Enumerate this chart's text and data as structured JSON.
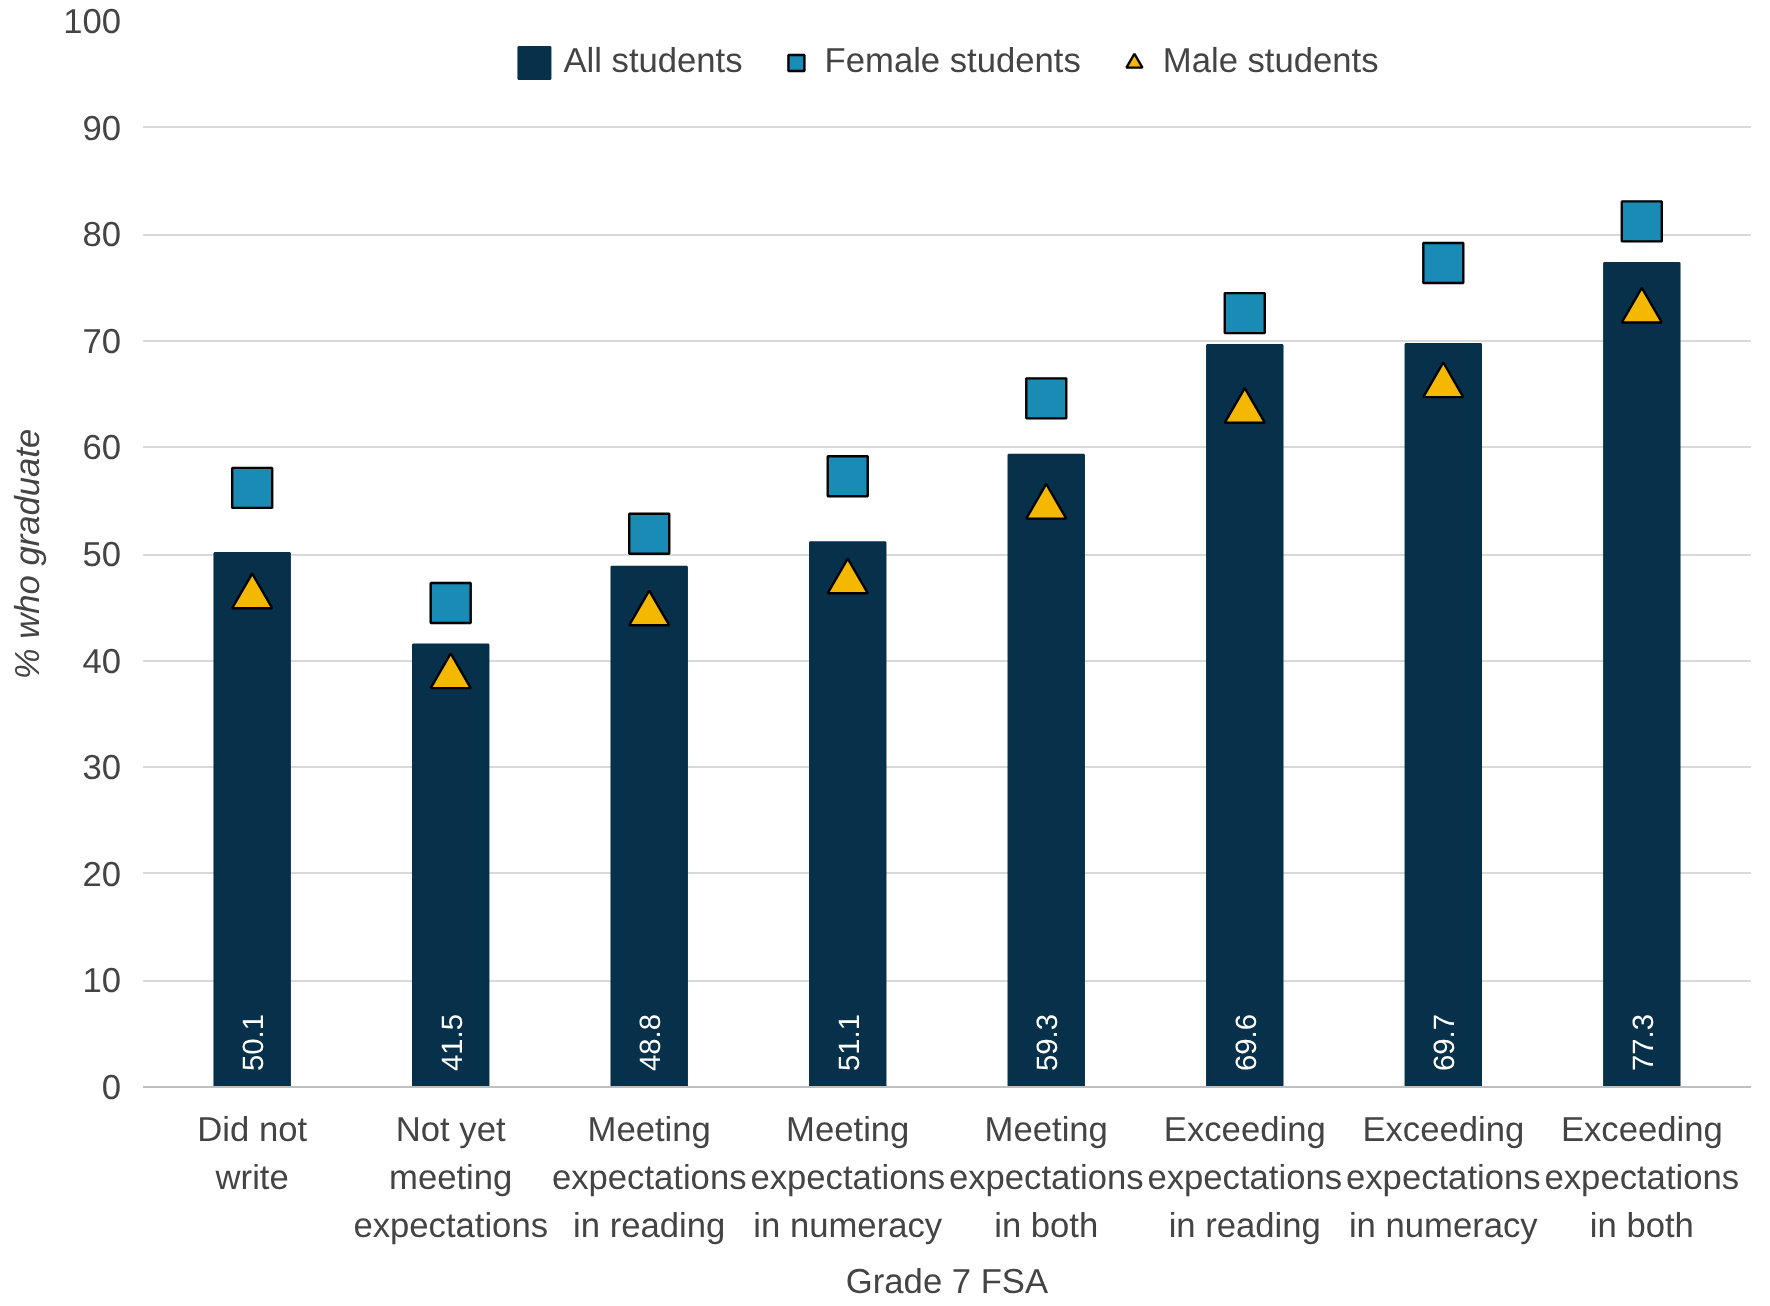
{
  "chart_data": {
    "type": "bar",
    "xlabel": "Grade 7 FSA",
    "ylabel": "% who graduate",
    "categories": [
      "Did not write",
      "Not yet meeting expectations",
      "Meeting expectations in reading",
      "Meeting expectations in numeracy",
      "Meeting expectations in both",
      "Exceeding expectations in reading",
      "Exceeding expectations in numeracy",
      "Exceeding expectations in both"
    ],
    "series": [
      {
        "name": "All students",
        "color": "#07304a",
        "values": [
          50.1,
          41.5,
          48.8,
          51.1,
          59.3,
          69.6,
          69.7,
          77.3
        ],
        "value_labels": [
          "50.1",
          "41.5",
          "48.8",
          "51.1",
          "59.3",
          "69.6",
          "69.7",
          "77.3"
        ]
      },
      {
        "name": "Female students",
        "type": "scatter",
        "marker": "square",
        "color": "#1a8bb5",
        "values": [
          56.2,
          45.4,
          51.9,
          57.3,
          64.6,
          72.6,
          77.3,
          81.2
        ]
      },
      {
        "name": "Male students",
        "type": "scatter",
        "marker": "triangle",
        "color": "#f5b800",
        "values": [
          46.0,
          38.5,
          44.4,
          47.4,
          54.4,
          63.4,
          65.8,
          72.8
        ]
      }
    ],
    "ylim": [
      0,
      100
    ],
    "yticks": [
      0,
      10,
      20,
      30,
      40,
      50,
      60,
      70,
      80,
      90,
      100
    ],
    "grid": "y",
    "legend": "top"
  }
}
